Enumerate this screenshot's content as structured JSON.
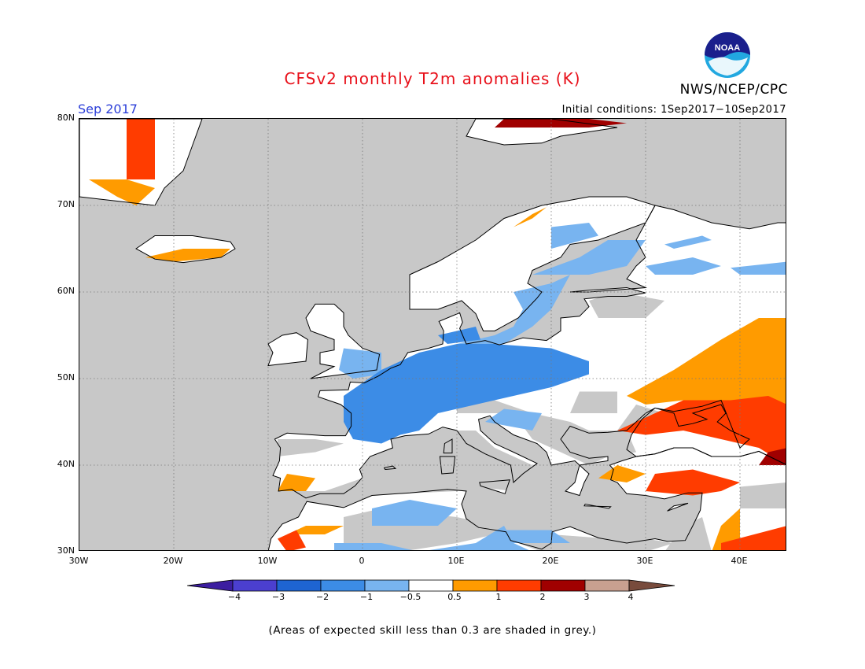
{
  "header": {
    "title": "CFSv2 monthly T2m anomalies (K)",
    "agency": "NWS/NCEP/CPC",
    "period": "Sep 2017",
    "initial_conditions": "Initial conditions: 1Sep2017−10Sep2017",
    "logo_text": "NOAA"
  },
  "map": {
    "lat_labels": [
      "80N",
      "70N",
      "60N",
      "50N",
      "40N",
      "30N"
    ],
    "lon_labels": [
      "30W",
      "20W",
      "10W",
      "0",
      "10E",
      "20E",
      "30E",
      "40E"
    ],
    "lon_range": [
      -30,
      45
    ],
    "lat_range": [
      30,
      80
    ],
    "grid": "dotted",
    "mask_color": "#c8c8c8",
    "land_color": "#ffffff"
  },
  "colorbar": {
    "labels": [
      "−4",
      "−3",
      "−2",
      "−1",
      "−0.5",
      "0.5",
      "1",
      "2",
      "3",
      "4"
    ],
    "colors": [
      "#3c1ea0",
      "#4b3fcf",
      "#1e64d2",
      "#3c8ce6",
      "#78b4f0",
      "#ffffff",
      "#ff9b00",
      "#ff3c00",
      "#a00000",
      "#c8a090",
      "#784b3c"
    ]
  },
  "footnote": "(Areas of expected skill less than 0.3 are shaded in grey.)",
  "anomaly_colors": {
    "lightblue": "#78b4f0",
    "blue": "#3c8ce6",
    "orange": "#ff9b00",
    "red": "#ff3c00",
    "darkred": "#a00000"
  }
}
